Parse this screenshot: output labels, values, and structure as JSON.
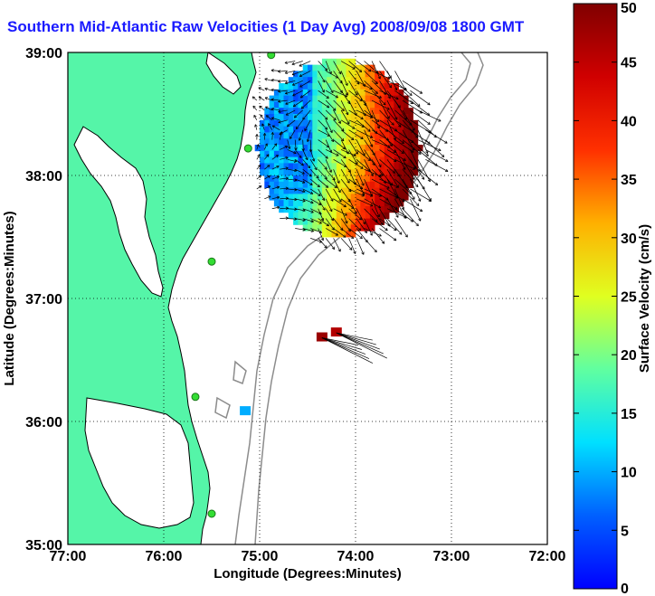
{
  "chart_data": {
    "type": "heatmap",
    "title": "Southern Mid-Atlantic Raw Velocities (1 Day Avg) 2008/09/08 1800 GMT",
    "xlabel": "Longitude (Degrees:Minutes)",
    "ylabel": "Latitude (Degrees:Minutes)",
    "xlim": [
      -77,
      -72
    ],
    "ylim": [
      35,
      39
    ],
    "x_ticks": [
      -77,
      -76,
      -75,
      -74,
      -73,
      -72
    ],
    "x_tick_labels": [
      "77:00",
      "76:00",
      "75:00",
      "74:00",
      "73:00",
      "72:00"
    ],
    "y_ticks": [
      35,
      36,
      37,
      38,
      39
    ],
    "y_tick_labels": [
      "35:00",
      "36:00",
      "37:00",
      "38:00",
      "39:00"
    ],
    "grid": true,
    "colorbar": {
      "label": "Surface Velocity (cm/s)",
      "range": [
        0,
        50
      ],
      "ticks": [
        0,
        5,
        10,
        15,
        20,
        25,
        30,
        35,
        40,
        45,
        50
      ],
      "tick_labels": [
        "0",
        "5",
        "10",
        "15",
        "20",
        "25",
        "30",
        "35",
        "40",
        "45",
        "50"
      ]
    },
    "colors": {
      "land": "#55f5a8",
      "water": "#ffffff",
      "coastline": "#000000",
      "bathymetry": "#8c8c8c",
      "title": "#1a1aff",
      "stations": "#33dd33"
    },
    "velocity_field": {
      "lon_range": [
        -75.05,
        -73.35
      ],
      "lat_range": [
        37.4,
        38.95
      ],
      "speed_pattern": "low (~5-12 cm/s) in western part, rising to 40-50 cm/s along eastern/southern edge",
      "arrow_color": "#000000"
    },
    "isolated_patches": [
      {
        "lon": -74.35,
        "lat": 36.68,
        "speed": 48
      },
      {
        "lon": -74.2,
        "lat": 36.72,
        "speed": 46
      },
      {
        "lon": -75.15,
        "lat": 36.08,
        "speed": 10
      }
    ],
    "station_sites": [
      {
        "lon": -74.88,
        "lat": 38.98
      },
      {
        "lon": -75.12,
        "lat": 38.22
      },
      {
        "lon": -75.5,
        "lat": 37.3
      },
      {
        "lon": -75.67,
        "lat": 36.2
      },
      {
        "lon": -75.5,
        "lat": 35.25
      }
    ]
  }
}
